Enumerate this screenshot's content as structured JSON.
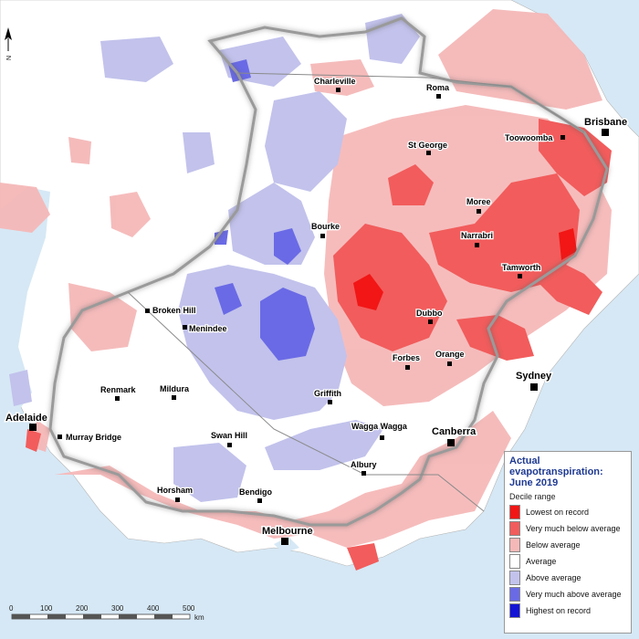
{
  "map": {
    "legend": {
      "title_line1": "Actual",
      "title_line2": "evapotranspiration:",
      "title_line3": "June 2019",
      "subtitle": "Decile range",
      "categories": [
        {
          "label": "Lowest on record",
          "color": "#f21616"
        },
        {
          "label": "Very much below average",
          "color": "#f25c5c"
        },
        {
          "label": "Below average",
          "color": "#f5b8b8"
        },
        {
          "label": "Average",
          "color": "#ffffff"
        },
        {
          "label": "Above average",
          "color": "#c2c2ec"
        },
        {
          "label": "Very much above average",
          "color": "#6a6ae6"
        },
        {
          "label": "Highest on record",
          "color": "#1414d6"
        }
      ]
    },
    "cities": [
      {
        "name": "Brisbane"
      },
      {
        "name": "Sydney"
      },
      {
        "name": "Canberra"
      },
      {
        "name": "Melbourne"
      },
      {
        "name": "Adelaide"
      }
    ],
    "towns": [
      {
        "name": "Charleville"
      },
      {
        "name": "Roma"
      },
      {
        "name": "St George"
      },
      {
        "name": "Toowoomba"
      },
      {
        "name": "Moree"
      },
      {
        "name": "Bourke"
      },
      {
        "name": "Narrabri"
      },
      {
        "name": "Tamworth"
      },
      {
        "name": "Broken Hill"
      },
      {
        "name": "Menindee"
      },
      {
        "name": "Dubbo"
      },
      {
        "name": "Orange"
      },
      {
        "name": "Forbes"
      },
      {
        "name": "Renmark"
      },
      {
        "name": "Mildura"
      },
      {
        "name": "Griffith"
      },
      {
        "name": "Murray Bridge"
      },
      {
        "name": "Swan Hill"
      },
      {
        "name": "Wagga Wagga"
      },
      {
        "name": "Albury"
      },
      {
        "name": "Horsham"
      },
      {
        "name": "Bendigo"
      }
    ],
    "scale": {
      "ticks": [
        "0",
        "100",
        "200",
        "300",
        "400",
        "500"
      ],
      "unit": "km"
    },
    "north_label": "N",
    "colors": {
      "ocean": "#d6e8f5",
      "land": "#ffffff",
      "border": "#8a8a8a"
    }
  }
}
